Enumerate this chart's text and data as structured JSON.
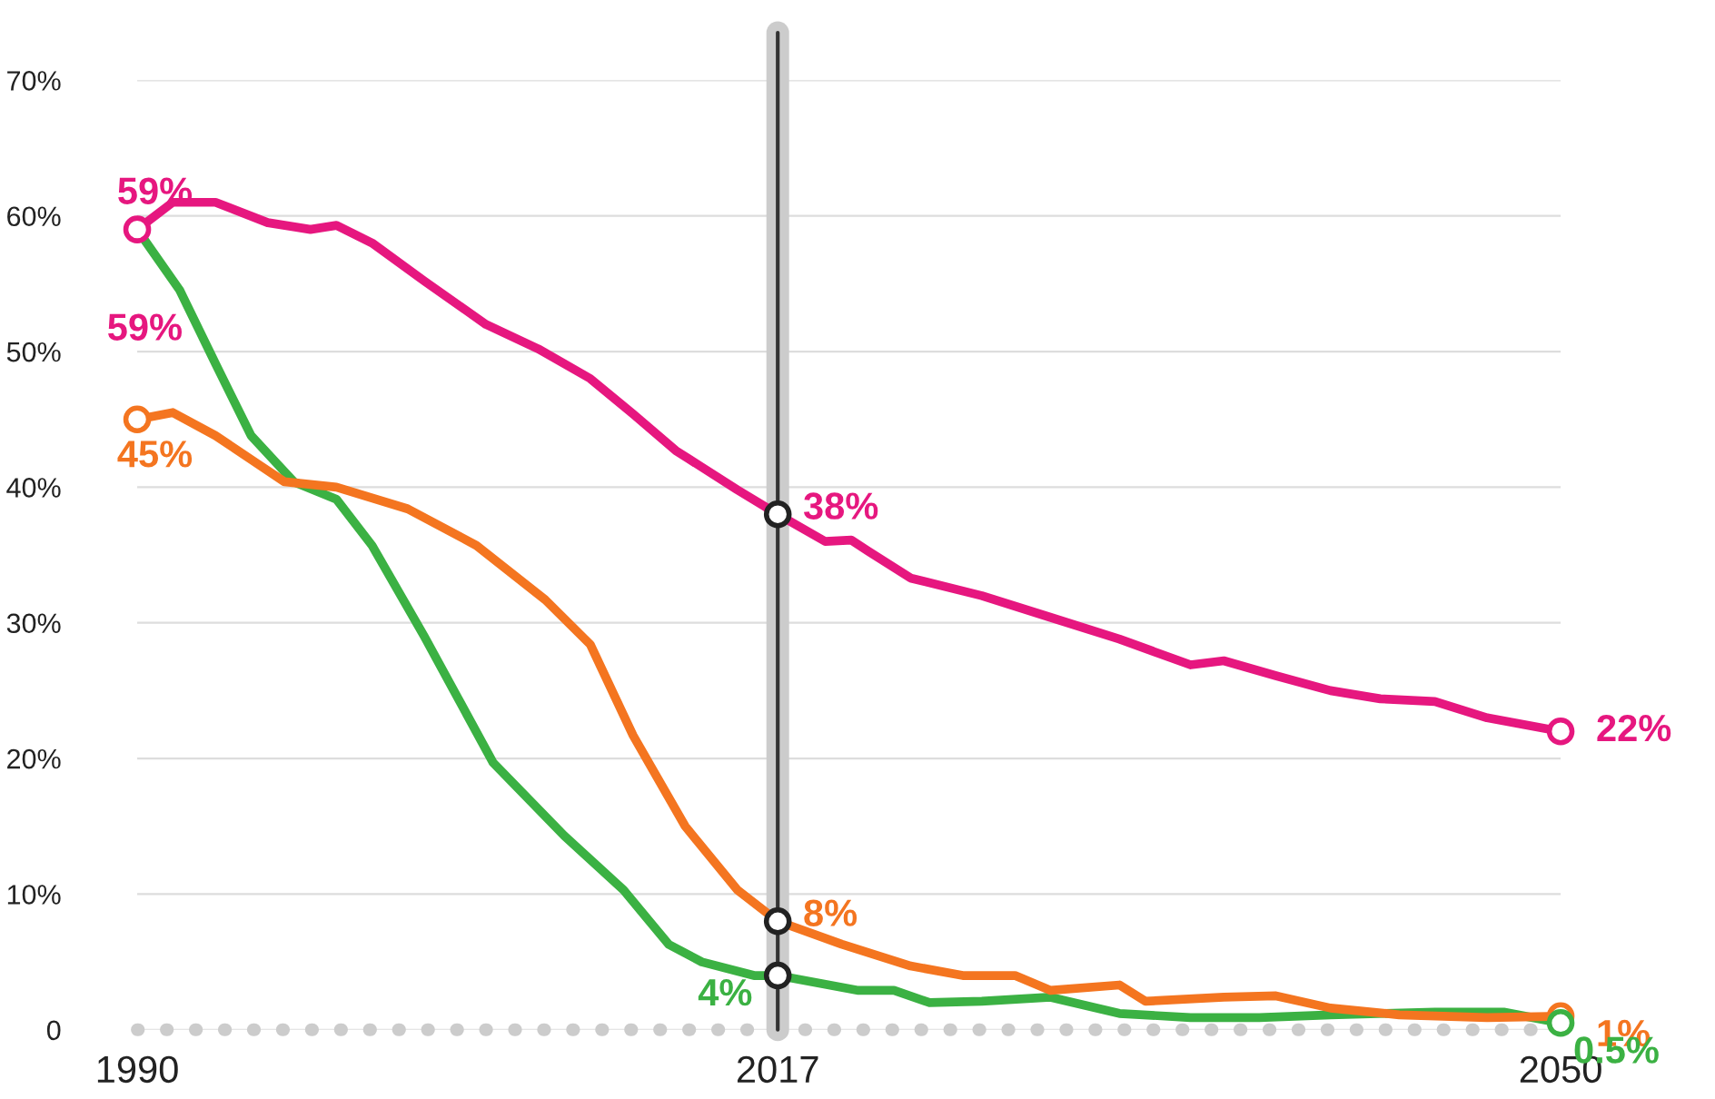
{
  "chart_data": {
    "type": "line",
    "xlim": [
      1990,
      2050
    ],
    "xticks": [
      1990,
      2017,
      2050
    ],
    "ylim": [
      0,
      70
    ],
    "yticks": [
      {
        "value": 0,
        "label": "0"
      },
      {
        "value": 10,
        "label": "10%"
      },
      {
        "value": 20,
        "label": "20%"
      },
      {
        "value": 30,
        "label": "30%"
      },
      {
        "value": 40,
        "label": "40%"
      },
      {
        "value": 50,
        "label": "50%"
      },
      {
        "value": 60,
        "label": "60%"
      },
      {
        "value": 70,
        "label": "70%"
      }
    ],
    "grid": "y",
    "line_style": "solid",
    "series": [
      {
        "color": "#e6177f",
        "x": [
          1990,
          1991.5,
          1993.3,
          1995.5,
          1997.3,
          1998.4,
          1999.9,
          2002.1,
          2004.7,
          2006.9,
          2009.1,
          2010.9,
          2012.7,
          2015.3,
          2017,
          2019,
          2020.1,
          2020.8,
          2022.6,
          2025.6,
          2028.5,
          2031.4,
          2034.4,
          2035.8,
          2038,
          2040.3,
          2042.4,
          2044.7,
          2046.9,
          2050
        ],
        "values": [
          59,
          61,
          61,
          59.5,
          59,
          59.3,
          58,
          55.2,
          52,
          50.2,
          48,
          45.4,
          42.7,
          39.8,
          38,
          36,
          36.1,
          35.3,
          33.3,
          32,
          30.4,
          28.8,
          26.9,
          27.2,
          26.1,
          25,
          24.4,
          24.2,
          23,
          22
        ]
      },
      {
        "color": "#3bb143",
        "x": [
          1990,
          1991.8,
          1993.3,
          1994.8,
          1996.6,
          1998.4,
          1999.9,
          2002.1,
          2005,
          2008,
          2010.5,
          2012.4,
          2013.8,
          2016,
          2017,
          2020.4,
          2021.9,
          2023.4,
          2025.6,
          2028.5,
          2031.4,
          2034.4,
          2037.3,
          2040.3,
          2044.7,
          2047.6,
          2050
        ],
        "values": [
          59,
          54.5,
          49.1,
          43.8,
          40.4,
          39.1,
          35.7,
          29,
          19.7,
          14.3,
          10.3,
          6.3,
          5,
          4,
          4,
          2.9,
          2.9,
          2,
          2.1,
          2.4,
          1.2,
          0.9,
          0.9,
          1.1,
          1.3,
          1.3,
          0.5
        ]
      },
      {
        "color": "#f47520",
        "x": [
          1990,
          1991.5,
          1993.3,
          1996.2,
          1998.4,
          2001.4,
          2004.3,
          2007.2,
          2009.1,
          2010.9,
          2013.1,
          2015.3,
          2017,
          2019.7,
          2022.6,
          2024.8,
          2027,
          2028.5,
          2031.4,
          2032.5,
          2035.8,
          2038,
          2040.3,
          2043.2,
          2046.9,
          2050
        ],
        "values": [
          45,
          45.5,
          43.8,
          40.4,
          40,
          38.4,
          35.7,
          31.7,
          28.4,
          21.7,
          15,
          10.3,
          8,
          6.3,
          4.7,
          4,
          4,
          2.9,
          3.3,
          2.1,
          2.4,
          2.5,
          1.6,
          1.1,
          0.9,
          1
        ]
      }
    ],
    "ref_lines": [
      {
        "axis": "x",
        "value": 2017,
        "color": "#cccccc"
      },
      {
        "axis": "x",
        "value": 2017,
        "color": "#333333"
      },
      {
        "axis": "y",
        "value": 0,
        "color": "#cccccc",
        "line_style": "dotted"
      }
    ],
    "annotations": [
      {
        "text": "59%",
        "x": 1990,
        "y": 59
      },
      {
        "text": "59%",
        "x": 1990,
        "y": 59
      },
      {
        "text": "45%",
        "x": 1990,
        "y": 45
      },
      {
        "text": "38%",
        "x": 2017,
        "y": 38
      },
      {
        "text": "8%",
        "x": 2017,
        "y": 8
      },
      {
        "text": "4%",
        "x": 2017,
        "y": 4
      },
      {
        "text": "22%",
        "x": 2050,
        "y": 22
      },
      {
        "text": "1%",
        "x": 2050,
        "y": 1
      },
      {
        "text": "0.5%",
        "x": 2050,
        "y": 0.5
      }
    ]
  }
}
